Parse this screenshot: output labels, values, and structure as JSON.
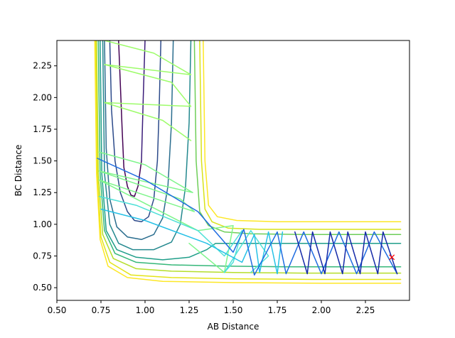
{
  "chart_data": {
    "type": "line",
    "subtype": "contour-with-trajectory",
    "title": "",
    "xlabel": "AB Distance",
    "ylabel": "BC Distance",
    "xlim": [
      0.5,
      2.5
    ],
    "ylim": [
      0.4,
      2.45
    ],
    "xticks": [
      "0.50",
      "0.75",
      "1.00",
      "1.25",
      "1.50",
      "1.75",
      "2.00",
      "2.25"
    ],
    "yticks": [
      "0.50",
      "0.75",
      "1.00",
      "1.25",
      "1.50",
      "1.75",
      "2.00",
      "2.25"
    ],
    "grid": false,
    "legend": "none",
    "colormap": "viridis",
    "contour_levels": [
      {
        "color": "#440154",
        "x": [
          0.85,
          0.87,
          0.88,
          0.9,
          0.92,
          0.94,
          0.96,
          0.98
        ],
        "y": [
          2.45,
          1.75,
          1.45,
          1.3,
          1.23,
          1.22,
          1.3,
          1.5
        ]
      },
      {
        "color": "#3b1c7a",
        "x": [
          0.98,
          0.99,
          1.0
        ],
        "y": [
          1.5,
          2.0,
          2.45
        ]
      },
      {
        "color": "#2c4a8a",
        "x": [
          0.8,
          0.81,
          0.83,
          0.86,
          0.9,
          0.94,
          0.98,
          1.02,
          1.05,
          1.07,
          1.08,
          1.09
        ],
        "y": [
          2.45,
          1.9,
          1.5,
          1.25,
          1.1,
          1.03,
          1.02,
          1.06,
          1.2,
          1.5,
          1.9,
          2.45
        ]
      },
      {
        "color": "#2a6d8e",
        "x": [
          0.77,
          0.78,
          0.8,
          0.84,
          0.9,
          0.98,
          1.05,
          1.1,
          1.13,
          1.15,
          1.16
        ],
        "y": [
          2.45,
          1.6,
          1.2,
          0.98,
          0.9,
          0.88,
          0.92,
          1.05,
          1.3,
          1.8,
          2.45
        ]
      },
      {
        "color": "#23888e",
        "x": [
          0.76,
          0.77,
          0.8,
          0.85,
          0.93,
          1.05,
          1.15,
          1.2,
          1.23,
          1.25,
          1.26
        ],
        "y": [
          2.45,
          1.4,
          1.0,
          0.85,
          0.8,
          0.8,
          0.86,
          1.0,
          1.3,
          1.8,
          2.45
        ]
      },
      {
        "color": "#1f9e89",
        "x": [
          0.745,
          0.755,
          0.78,
          0.84,
          0.95,
          1.1,
          1.25,
          1.35,
          1.4,
          1.45,
          1.6,
          1.85,
          2.1,
          2.45
        ],
        "y": [
          2.45,
          1.4,
          0.95,
          0.8,
          0.74,
          0.72,
          0.74,
          0.8,
          0.85,
          0.85,
          0.85,
          0.85,
          0.85,
          0.85
        ]
      },
      {
        "color": "#35b779",
        "x": [
          0.735,
          0.745,
          0.77,
          0.83,
          0.95,
          1.15,
          1.45,
          1.8,
          2.2,
          2.45
        ],
        "y": [
          2.45,
          1.4,
          0.95,
          0.77,
          0.7,
          0.68,
          0.67,
          0.665,
          0.665,
          0.665
        ]
      },
      {
        "color": "#6ece58",
        "x": [
          1.28,
          1.29,
          1.31,
          1.36,
          1.45,
          1.6,
          1.9,
          2.2,
          2.45
        ],
        "y": [
          2.45,
          1.5,
          1.1,
          0.99,
          0.94,
          0.925,
          0.92,
          0.92,
          0.92
        ]
      },
      {
        "color": "#b5de2b",
        "x": [
          0.725,
          0.735,
          0.76,
          0.82,
          0.95,
          1.15,
          1.5,
          1.9,
          2.45
        ],
        "y": [
          2.45,
          1.4,
          0.92,
          0.73,
          0.65,
          0.63,
          0.62,
          0.615,
          0.615
        ]
      },
      {
        "color": "#d8e219",
        "x": [
          1.31,
          1.32,
          1.34,
          1.38,
          1.47,
          1.65,
          1.95,
          2.2,
          2.45
        ],
        "y": [
          2.45,
          1.5,
          1.12,
          1.02,
          0.97,
          0.96,
          0.96,
          0.96,
          0.96
        ]
      },
      {
        "color": "#e3e418",
        "x": [
          0.72,
          0.73,
          0.75,
          0.8,
          0.92,
          1.15,
          1.5,
          1.95,
          2.45
        ],
        "y": [
          2.45,
          1.4,
          0.9,
          0.7,
          0.6,
          0.58,
          0.57,
          0.565,
          0.565
        ]
      },
      {
        "color": "#fde725",
        "x": [
          1.33,
          1.34,
          1.36,
          1.41,
          1.52,
          1.75,
          2.05,
          2.45
        ],
        "y": [
          2.45,
          1.5,
          1.15,
          1.06,
          1.03,
          1.02,
          1.02,
          1.02
        ]
      },
      {
        "color": "#fde725",
        "x": [
          0.715,
          0.725,
          0.745,
          0.79,
          0.9,
          1.1,
          1.5,
          2.0,
          2.45
        ],
        "y": [
          2.45,
          1.4,
          0.88,
          0.67,
          0.58,
          0.55,
          0.54,
          0.535,
          0.535
        ]
      }
    ],
    "trajectory": [
      {
        "color": "#9dfc6a",
        "x": [
          0.77,
          1.05,
          1.26,
          0.77,
          1.15,
          1.26,
          0.77,
          1.1,
          1.26
        ],
        "y": [
          2.45,
          2.35,
          2.18,
          2.26,
          2.12,
          1.93,
          1.96,
          1.82,
          1.66
        ]
      },
      {
        "color": "#7ff58b",
        "x": [
          0.74,
          1.0,
          1.27,
          0.74,
          1.2,
          1.28,
          0.74,
          1.3,
          1.5,
          1.45,
          1.25
        ],
        "y": [
          1.57,
          1.47,
          1.25,
          1.42,
          1.2,
          1.1,
          1.35,
          0.95,
          0.99,
          0.62,
          0.85
        ]
      },
      {
        "color": "#4fe0d7",
        "x": [
          0.74,
          0.95,
          1.3,
          1.45,
          1.55,
          1.5,
          1.45,
          1.6,
          1.7,
          1.6
        ],
        "y": [
          1.22,
          1.15,
          0.95,
          0.75,
          0.95,
          0.7,
          0.62,
          0.95,
          0.75,
          0.62
        ]
      },
      {
        "color": "#26c1e6",
        "x": [
          0.75,
          1.0,
          1.35,
          1.55,
          1.62,
          1.65,
          1.7,
          1.75,
          1.78
        ],
        "y": [
          1.12,
          1.03,
          0.85,
          0.7,
          0.92,
          0.62,
          0.94,
          0.61,
          0.94
        ]
      },
      {
        "color": "#1f6ce0",
        "x": [
          0.73,
          1.0,
          1.3,
          1.5,
          1.56,
          1.62,
          1.75,
          1.8,
          1.9,
          2.0,
          2.1,
          2.2,
          2.3,
          2.43
        ],
        "y": [
          1.52,
          1.35,
          1.1,
          0.78,
          0.96,
          0.6,
          0.94,
          0.61,
          0.94,
          0.61,
          0.94,
          0.61,
          0.94,
          0.61
        ]
      },
      {
        "color": "#152aa8",
        "x": [
          1.85,
          1.92,
          1.95,
          2.02,
          2.05,
          2.12,
          2.15,
          2.22,
          2.25,
          2.32,
          2.35,
          2.43
        ],
        "y": [
          0.94,
          0.61,
          0.94,
          0.61,
          0.94,
          0.61,
          0.94,
          0.61,
          0.94,
          0.61,
          0.94,
          0.61
        ]
      }
    ],
    "marker": {
      "symbol": "x",
      "color": "#ff0000",
      "x": 2.4,
      "y": 0.74
    }
  }
}
